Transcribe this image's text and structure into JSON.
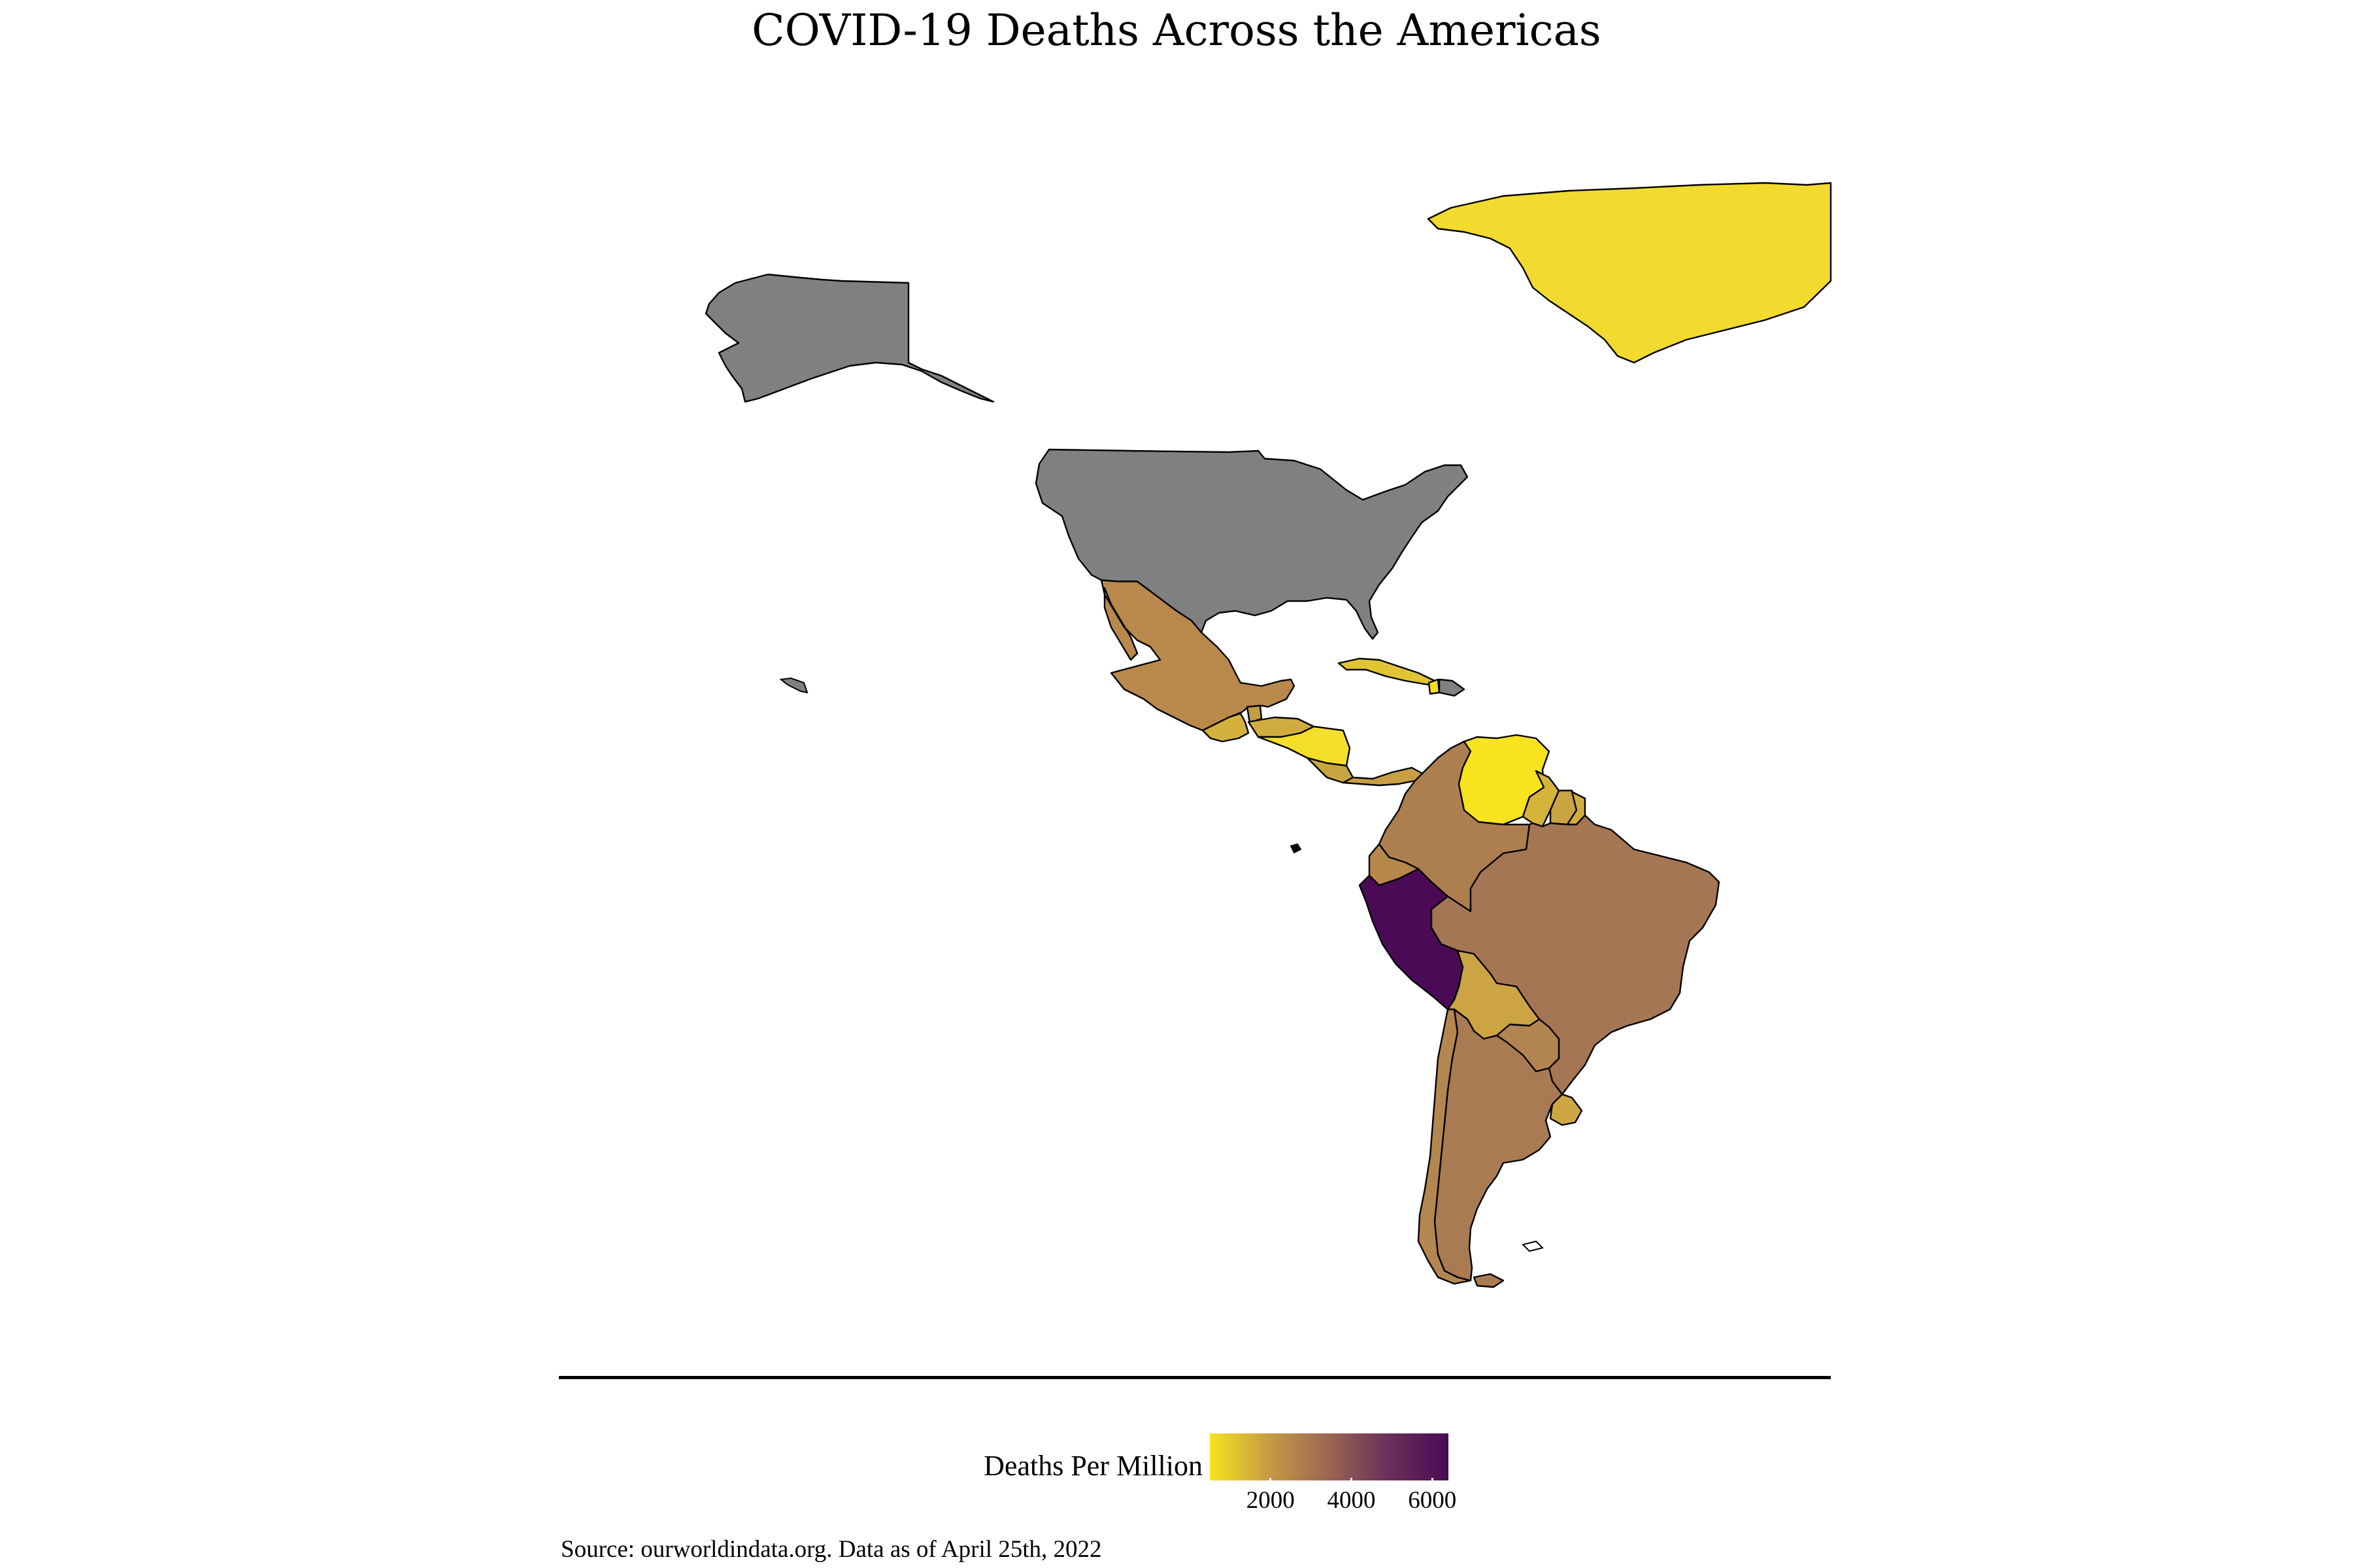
{
  "title": "COVID-19 Deaths Across the Americas",
  "legend": {
    "title": "Deaths Per Million",
    "ticks": [
      2000,
      4000,
      6000
    ],
    "tick_labels": [
      "2000",
      "4000",
      "6000"
    ],
    "range": [
      500,
      6400
    ],
    "colors": [
      "#f7e31e",
      "#c59a44",
      "#9b6553",
      "#6a2f5a",
      "#4a0a55"
    ]
  },
  "source": "Source: ourworldindata.org. Data as of April 25th, 2022",
  "map_data": {
    "no_data_color": "#808080",
    "countries": [
      {
        "name": "Greenland",
        "fill": "#f2da2e"
      },
      {
        "name": "Alaska (United States)",
        "fill": "#808080"
      },
      {
        "name": "United States",
        "fill": "#808080"
      },
      {
        "name": "Mexico",
        "fill": "#b9894c"
      },
      {
        "name": "Guatemala",
        "fill": "#d3b13c"
      },
      {
        "name": "Belize",
        "fill": "#c39c44"
      },
      {
        "name": "Honduras",
        "fill": "#d0ac3e"
      },
      {
        "name": "Nicaragua",
        "fill": "#f3df27"
      },
      {
        "name": "Costa Rica",
        "fill": "#c9a443"
      },
      {
        "name": "Panama",
        "fill": "#c89f44"
      },
      {
        "name": "Cuba",
        "fill": "#e1c433"
      },
      {
        "name": "Haiti",
        "fill": "#f5e021"
      },
      {
        "name": "Dominican Republic",
        "fill": "#808080"
      },
      {
        "name": "Colombia",
        "fill": "#ad7f4f"
      },
      {
        "name": "Venezuela",
        "fill": "#f7e31e"
      },
      {
        "name": "Guyana",
        "fill": "#d6b43b"
      },
      {
        "name": "Suriname",
        "fill": "#caa442"
      },
      {
        "name": "French Guiana",
        "fill": "#d2ad3e"
      },
      {
        "name": "Ecuador",
        "fill": "#b8884b"
      },
      {
        "name": "Peru",
        "fill": "#4a0a55"
      },
      {
        "name": "Brazil",
        "fill": "#a57653"
      },
      {
        "name": "Bolivia",
        "fill": "#cca444"
      },
      {
        "name": "Paraguay",
        "fill": "#b28451"
      },
      {
        "name": "Chile",
        "fill": "#b48650"
      },
      {
        "name": "Argentina",
        "fill": "#a97b53"
      },
      {
        "name": "Uruguay",
        "fill": "#cda744"
      }
    ]
  }
}
